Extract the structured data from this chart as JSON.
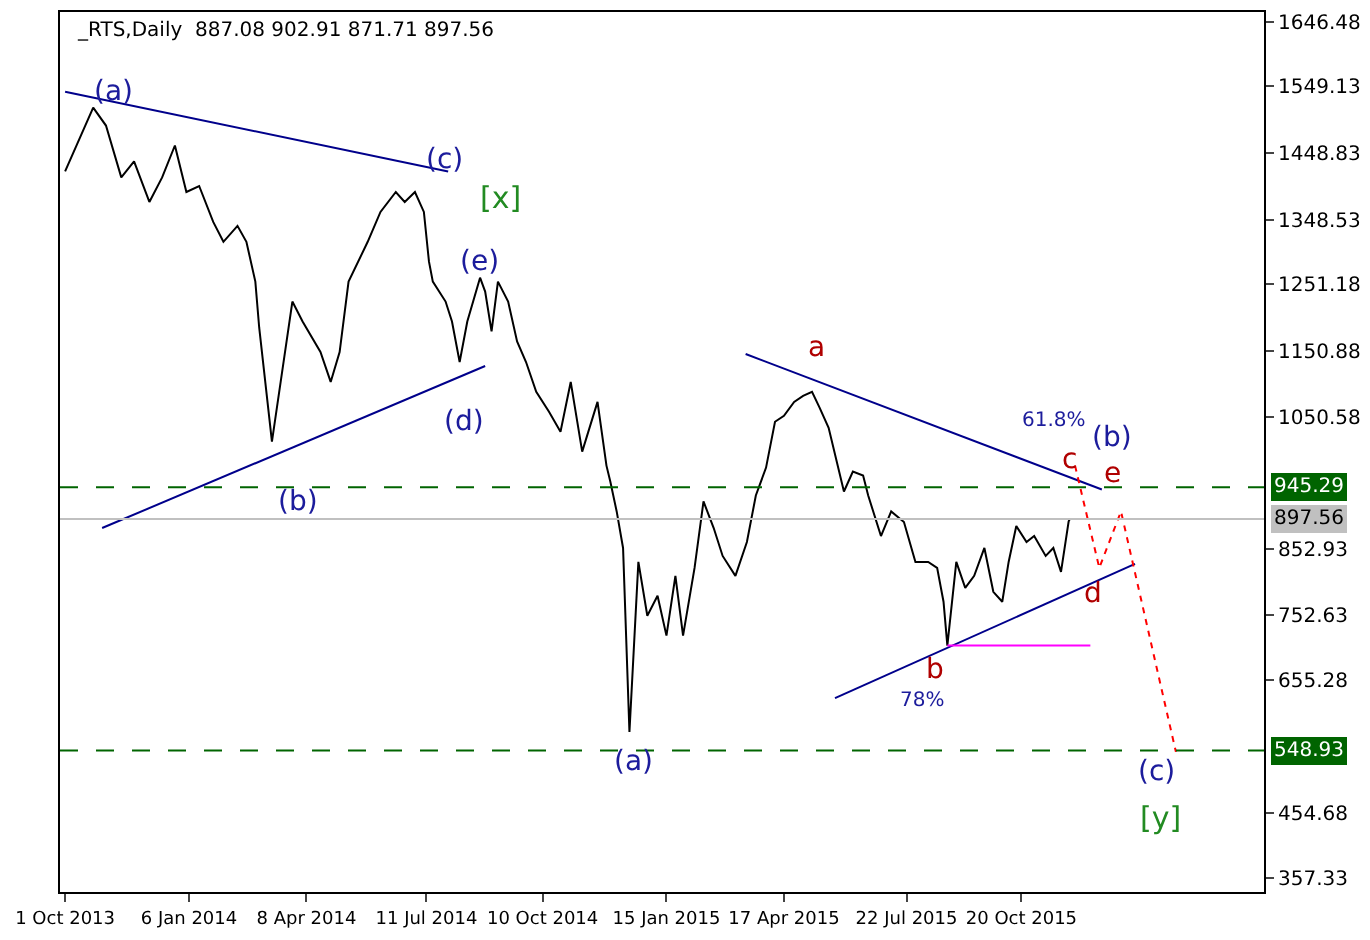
{
  "chart_data": {
    "type": "line",
    "title": "_RTS,Daily  887.08 902.91 871.71 897.56",
    "xlim": [
      "2013-09-27",
      "2016-04-27"
    ],
    "xticks": [
      {
        "value": "2013-10-01",
        "label": "1 Oct 2013"
      },
      {
        "value": "2014-01-06",
        "label": "6 Jan 2014"
      },
      {
        "value": "2014-04-08",
        "label": "8 Apr 2014"
      },
      {
        "value": "2014-07-11",
        "label": "11 Jul 2014"
      },
      {
        "value": "2014-10-10",
        "label": "10 Oct 2014"
      },
      {
        "value": "2015-01-15",
        "label": "15 Jan 2015"
      },
      {
        "value": "2015-04-17",
        "label": "17 Apr 2015"
      },
      {
        "value": "2015-07-22",
        "label": "22 Jul 2015"
      },
      {
        "value": "2015-10-20",
        "label": "20 Oct 2015"
      }
    ],
    "ylim": [
      336,
      1661
    ],
    "yticks": [
      357.33,
      454.68,
      655.28,
      752.63,
      852.93,
      1050.58,
      1150.88,
      1251.18,
      1348.53,
      1448.83,
      1549.13,
      1646.48
    ],
    "series": [
      {
        "color": "#000000",
        "line_style": "solid",
        "x": [
          "2013-10-01",
          "2013-10-23",
          "2013-11-02",
          "2013-11-14",
          "2013-11-24",
          "2013-12-06",
          "2013-12-16",
          "2013-12-26",
          "2014-01-04",
          "2014-01-14",
          "2014-01-25",
          "2014-02-02",
          "2014-02-13",
          "2014-02-20",
          "2014-02-27",
          "2014-03-02",
          "2014-03-12",
          "2014-03-28",
          "2014-04-05",
          "2014-04-19",
          "2014-04-27",
          "2014-05-04",
          "2014-05-11",
          "2014-05-26",
          "2014-06-05",
          "2014-06-17",
          "2014-06-24",
          "2014-07-02",
          "2014-07-09",
          "2014-07-13",
          "2014-07-16",
          "2014-07-26",
          "2014-07-31",
          "2014-08-06",
          "2014-08-12",
          "2014-08-22",
          "2014-08-26",
          "2014-08-31",
          "2014-09-05",
          "2014-09-13",
          "2014-09-20",
          "2014-09-27",
          "2014-10-05",
          "2014-10-15",
          "2014-10-24",
          "2014-11-01",
          "2014-11-10",
          "2014-11-22",
          "2014-11-29",
          "2014-12-02",
          "2014-12-07",
          "2014-12-12",
          "2014-12-17",
          "2014-12-24",
          "2014-12-31",
          "2015-01-08",
          "2015-01-15",
          "2015-01-22",
          "2015-01-28",
          "2015-02-06",
          "2015-02-13",
          "2015-02-21",
          "2015-02-28",
          "2015-03-10",
          "2015-03-19",
          "2015-03-26",
          "2015-04-03",
          "2015-04-10",
          "2015-04-17",
          "2015-04-25",
          "2015-05-02",
          "2015-05-09",
          "2015-05-15",
          "2015-05-22",
          "2015-06-03",
          "2015-06-10",
          "2015-06-18",
          "2015-06-22",
          "2015-07-02",
          "2015-07-10",
          "2015-07-20",
          "2015-07-29",
          "2015-08-08",
          "2015-08-15",
          "2015-08-20",
          "2015-08-23",
          "2015-08-30",
          "2015-09-06",
          "2015-09-13",
          "2015-09-21",
          "2015-09-28",
          "2015-10-05",
          "2015-10-10",
          "2015-10-16",
          "2015-10-24",
          "2015-10-30",
          "2015-11-08",
          "2015-11-14",
          "2015-11-20",
          "2015-11-26",
          "2015-11-27"
        ],
        "values": [
          1421,
          1517,
          1490,
          1412,
          1436,
          1375,
          1412,
          1460,
          1390,
          1399,
          1345,
          1315,
          1339,
          1315,
          1255,
          1186,
          1014,
          1225,
          1195,
          1149,
          1104,
          1149,
          1255,
          1315,
          1360,
          1390,
          1375,
          1390,
          1360,
          1285,
          1255,
          1225,
          1195,
          1134,
          1195,
          1261,
          1240,
          1180,
          1255,
          1225,
          1165,
          1134,
          1089,
          1059,
          1029,
          1104,
          999,
          1074,
          978,
          954,
          909,
          854,
          577,
          833,
          752,
          782,
          722,
          812,
          722,
          824,
          924,
          884,
          842,
          812,
          863,
          933,
          975,
          1044,
          1053,
          1074,
          1083,
          1089,
          1065,
          1035,
          939,
          969,
          963,
          933,
          872,
          909,
          893,
          833,
          833,
          824,
          773,
          707,
          833,
          794,
          812,
          854,
          788,
          773,
          833,
          887,
          863,
          872,
          842,
          854,
          818,
          894,
          898
        ]
      },
      {
        "color": "#00008b",
        "line_style": "solid",
        "x": [
          "2013-10-01",
          "2014-07-28"
        ],
        "values": [
          1541,
          1421
        ]
      },
      {
        "color": "#00008b",
        "line_style": "solid",
        "x": [
          "2013-10-30",
          "2014-08-26"
        ],
        "values": [
          884,
          1128
        ]
      },
      {
        "color": "#00008b",
        "line_style": "solid",
        "x": [
          "2015-03-18",
          "2015-12-22"
        ],
        "values": [
          1146,
          942
        ]
      },
      {
        "color": "#00008b",
        "line_style": "solid",
        "x": [
          "2015-05-27",
          "2016-01-17"
        ],
        "values": [
          628,
          830
        ]
      },
      {
        "color": "#ff00ff",
        "line_style": "solid",
        "x": [
          "2015-08-23",
          "2015-12-13"
        ],
        "values": [
          707,
          707
        ]
      },
      {
        "color": "#ff0000",
        "line_style": "dotted",
        "x": [
          "2015-12-01",
          "2015-12-20",
          "2016-01-06",
          "2016-02-18"
        ],
        "values": [
          978,
          824,
          909,
          547
        ]
      }
    ],
    "ref_lines": [
      {
        "axis": "y",
        "value": 945.29,
        "label": "945.29",
        "color": "#006400",
        "line_style": "dashed"
      },
      {
        "axis": "y",
        "value": 548.93,
        "label": "548.93",
        "color": "#006400",
        "line_style": "dashed"
      },
      {
        "axis": "y",
        "value": 897.56,
        "label": "897.56",
        "color": "#c0c0c0",
        "line_style": "solid"
      }
    ],
    "annotations": [
      "(a)",
      "(c)",
      "[x]",
      "(e)",
      "(d)",
      "(b)",
      "(a)",
      "a",
      "c",
      "61.8%",
      "(b)",
      "e",
      "d",
      "b",
      "78%",
      "(c)",
      "[y]"
    ]
  }
}
